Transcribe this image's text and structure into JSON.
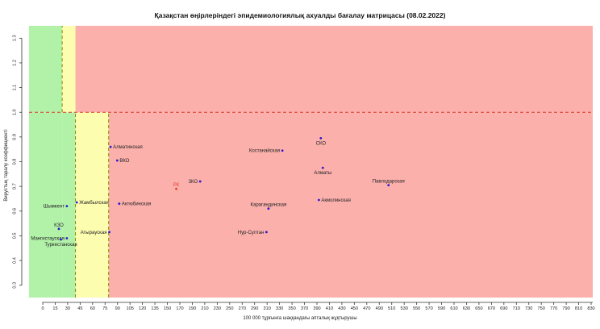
{
  "chart_data": {
    "type": "scatter",
    "title": "Қазақстан өңірлеріндегі эпидемиологиялық ахуалды бағалау матрицасы  (08.02.2022)",
    "xlabel": "100 000 тұрғынға шаққандағы апталық жұқтырушы",
    "ylabel": "Вирустың таралу коэффициенті",
    "xlim": [
      -20,
      830
    ],
    "ylim": [
      0.25,
      1.35
    ],
    "x_ticks": [
      0,
      15,
      30,
      45,
      60,
      75,
      90,
      105,
      120,
      135,
      150,
      170,
      190,
      210,
      230,
      250,
      270,
      290,
      310,
      330,
      350,
      370,
      390,
      410,
      430,
      450,
      470,
      490,
      510,
      530,
      550,
      570,
      590,
      610,
      630,
      650,
      670,
      690,
      710,
      730,
      750,
      770,
      790,
      810,
      830
    ],
    "y_ticks": [
      "0.3",
      "0.4",
      "0.5",
      "0.6",
      "0.7",
      "0.8",
      "0.9",
      "1.0",
      "1.1",
      "1.2",
      "1.3"
    ],
    "zones": [
      {
        "name": "green",
        "color": "#b2f2a8",
        "x0": -20,
        "x1": 30,
        "y0": 0.25,
        "y1": 1.0
      },
      {
        "name": "green",
        "color": "#b2f2a8",
        "x0": -20,
        "x1": 30,
        "y0": 1.0,
        "y1": 1.35
      },
      {
        "name": "green",
        "color": "#b2f2a8",
        "x0": 30,
        "x1": 50,
        "y0": 0.25,
        "y1": 1.0
      },
      {
        "name": "yellow",
        "color": "#fdfdb0",
        "x0": 30,
        "x1": 50,
        "y0": 1.0,
        "y1": 1.35
      },
      {
        "name": "yellow",
        "color": "#fdfdb0",
        "x0": 50,
        "x1": 100,
        "y0": 0.25,
        "y1": 1.0
      },
      {
        "name": "red",
        "color": "#fbb0ac",
        "x0": 50,
        "x1": 830,
        "y0": 1.0,
        "y1": 1.35
      },
      {
        "name": "red",
        "color": "#fbb0ac",
        "x0": 100,
        "x1": 830,
        "y0": 0.25,
        "y1": 1.0
      }
    ],
    "reference_lines": [
      {
        "axis": "y",
        "value": 1.0,
        "color": "#d93a2b"
      },
      {
        "axis": "x",
        "value": 50,
        "color": "#888800"
      },
      {
        "axis": "x",
        "value": 100,
        "color": "#888800"
      },
      {
        "axis": "x",
        "value": 30,
        "color": "#888800"
      }
    ],
    "point_color": "#2a1acc",
    "highlight_color": "#e8402e",
    "points": [
      {
        "label": "СКО",
        "x": 420,
        "y": 0.895,
        "label_pos": "below"
      },
      {
        "label": "Костанайская",
        "x": 362,
        "y": 0.845,
        "label_pos": "left"
      },
      {
        "label": "Алматинская",
        "x": 103,
        "y": 0.86,
        "label_pos": "right"
      },
      {
        "label": "ВКО",
        "x": 113,
        "y": 0.805,
        "label_pos": "right"
      },
      {
        "label": "Алматы",
        "x": 423,
        "y": 0.775,
        "label_pos": "below"
      },
      {
        "label": "ЗКО",
        "x": 238,
        "y": 0.72,
        "label_pos": "left"
      },
      {
        "label": "Павлодарская",
        "x": 522,
        "y": 0.705,
        "label_pos": "above"
      },
      {
        "label": "РК",
        "x": 202,
        "y": 0.69,
        "label_pos": "above",
        "highlight": true
      },
      {
        "label": "Акмолинская",
        "x": 417,
        "y": 0.645,
        "label_pos": "right"
      },
      {
        "label": "Жамбылская",
        "x": 52,
        "y": 0.635,
        "label_pos": "right"
      },
      {
        "label": "Актюбинская",
        "x": 116,
        "y": 0.63,
        "label_pos": "right"
      },
      {
        "label": "Шымкент",
        "x": 37,
        "y": 0.62,
        "label_pos": "left"
      },
      {
        "label": "Карагандинская",
        "x": 341,
        "y": 0.61,
        "label_pos": "above"
      },
      {
        "label": "КЗО",
        "x": 25,
        "y": 0.528,
        "label_pos": "above"
      },
      {
        "label": "Атырауская",
        "x": 101,
        "y": 0.515,
        "label_pos": "left"
      },
      {
        "label": "Нур-Султан",
        "x": 338,
        "y": 0.515,
        "label_pos": "left"
      },
      {
        "label": "Мангистауская",
        "x": 37,
        "y": 0.49,
        "label_pos": "left"
      },
      {
        "label": "Туркестанская",
        "x": 28,
        "y": 0.485,
        "label_pos": "below"
      }
    ]
  }
}
